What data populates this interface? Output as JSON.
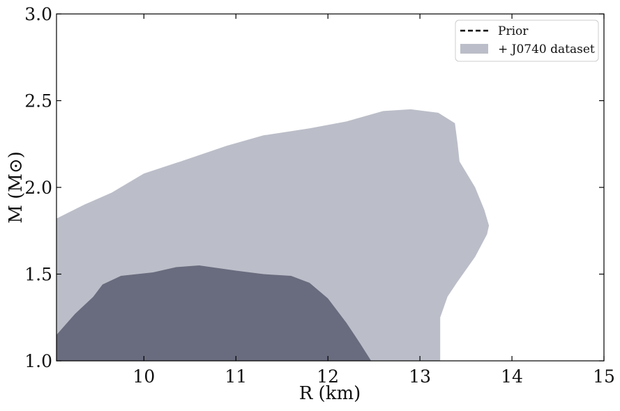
{
  "chart_data": {
    "type": "area",
    "xlabel": "R (km)",
    "ylabel": "M (M⊙)",
    "xlim": [
      9.05,
      15
    ],
    "ylim": [
      1.0,
      3.0
    ],
    "xticks": [
      10,
      11,
      12,
      13,
      14,
      15
    ],
    "xtick_labels": [
      "10",
      "11",
      "12",
      "13",
      "14",
      "15"
    ],
    "yticks": [
      1.0,
      1.5,
      2.0,
      2.5,
      3.0
    ],
    "ytick_labels": [
      "1.0",
      "1.5",
      "2.0",
      "2.5",
      "3.0"
    ],
    "grid": false,
    "legend": {
      "placement": "top-right",
      "entries": [
        {
          "label": "Prior",
          "style": "dashed-line",
          "color": "#000000"
        },
        {
          "label": "+ J0740 dataset",
          "style": "filled-patch",
          "color": "#bbbec8"
        }
      ]
    },
    "series": [
      {
        "color": "#bbbec8",
        "region": [
          [
            9.05,
            1.0
          ],
          [
            9.05,
            1.82
          ],
          [
            9.35,
            1.9
          ],
          [
            9.65,
            1.97
          ],
          [
            10.0,
            2.08
          ],
          [
            10.4,
            2.15
          ],
          [
            10.9,
            2.24
          ],
          [
            11.3,
            2.3
          ],
          [
            11.8,
            2.34
          ],
          [
            12.2,
            2.38
          ],
          [
            12.6,
            2.44
          ],
          [
            12.9,
            2.45
          ],
          [
            13.2,
            2.43
          ],
          [
            13.38,
            2.37
          ],
          [
            13.41,
            2.25
          ],
          [
            13.43,
            2.15
          ],
          [
            13.6,
            2.0
          ],
          [
            13.7,
            1.87
          ],
          [
            13.75,
            1.78
          ],
          [
            13.73,
            1.73
          ],
          [
            13.6,
            1.6
          ],
          [
            13.4,
            1.45
          ],
          [
            13.3,
            1.37
          ],
          [
            13.22,
            1.25
          ],
          [
            13.22,
            1.0
          ]
        ]
      },
      {
        "color": "#696b7e",
        "region": [
          [
            9.05,
            1.0
          ],
          [
            9.05,
            1.15
          ],
          [
            9.25,
            1.27
          ],
          [
            9.45,
            1.37
          ],
          [
            9.55,
            1.44
          ],
          [
            9.75,
            1.49
          ],
          [
            10.1,
            1.51
          ],
          [
            10.35,
            1.54
          ],
          [
            10.6,
            1.55
          ],
          [
            11.0,
            1.52
          ],
          [
            11.3,
            1.5
          ],
          [
            11.6,
            1.49
          ],
          [
            11.8,
            1.45
          ],
          [
            12.0,
            1.36
          ],
          [
            12.2,
            1.22
          ],
          [
            12.35,
            1.1
          ],
          [
            12.47,
            1.0
          ]
        ]
      }
    ]
  }
}
